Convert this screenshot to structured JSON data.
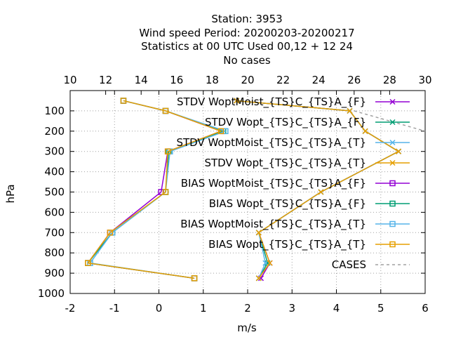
{
  "title_lines": [
    "Station:     3953",
    "Wind speed  Period: 20200203-20200217",
    "Statistics at 00 UTC  Used  00,12  + 12 24",
    "No cases"
  ],
  "chart_data": {
    "type": "line",
    "xlabel": "m/s",
    "ylabel": "hPa",
    "xlim": [
      -2,
      6
    ],
    "ylim": [
      1000,
      0
    ],
    "xticks": [
      "-2",
      "-1",
      "0",
      "1",
      "2",
      "3",
      "4",
      "5",
      "6"
    ],
    "yticks": [
      "100",
      "200",
      "300",
      "400",
      "500",
      "600",
      "700",
      "800",
      "900",
      "1000"
    ],
    "x2lim": [
      10,
      30
    ],
    "x2ticks": [
      "10",
      "12",
      "14",
      "16",
      "18",
      "20",
      "22",
      "24",
      "26",
      "28",
      "30"
    ],
    "grid": true,
    "legend_position": "top-right",
    "series": [
      {
        "name": "STDV WoptMoist_{TS}C_{TS}A_{F}",
        "color": "#9400d3",
        "marker": "x",
        "x": [
          1.75,
          4.3,
          4.65,
          5.4,
          3.65,
          2.25,
          2.5,
          2.3
        ],
        "y": [
          50,
          100,
          200,
          300,
          500,
          700,
          850,
          925
        ]
      },
      {
        "name": "STDV Wopt_{TS}C_{TS}A_{F}",
        "color": "#009e73",
        "marker": "x",
        "x": [
          1.75,
          4.3,
          4.65,
          5.4,
          3.65,
          2.25,
          2.45,
          2.25
        ],
        "y": [
          50,
          100,
          200,
          300,
          500,
          700,
          850,
          925
        ]
      },
      {
        "name": "STDV WoptMoist_{TS}C_{TS}A_{T}",
        "color": "#56b4e9",
        "marker": "x",
        "x": [
          1.75,
          4.3,
          4.65,
          5.4,
          3.65,
          2.25,
          2.4,
          2.25
        ],
        "y": [
          50,
          100,
          200,
          300,
          500,
          700,
          850,
          925
        ]
      },
      {
        "name": "STDV Wopt_{TS}C_{TS}A_{T}",
        "color": "#e69f00",
        "marker": "x",
        "x": [
          1.75,
          4.3,
          4.65,
          5.4,
          3.65,
          2.25,
          2.5,
          2.25
        ],
        "y": [
          50,
          100,
          200,
          300,
          500,
          700,
          850,
          925
        ]
      },
      {
        "name": "BIAS WoptMoist_{TS}C_{TS}A_{F}",
        "color": "#9400d3",
        "marker": "square",
        "x": [
          -0.8,
          0.15,
          1.4,
          0.2,
          0.05,
          -1.1,
          -1.6,
          0.8
        ],
        "y": [
          50,
          100,
          200,
          300,
          500,
          700,
          850,
          925
        ]
      },
      {
        "name": "BIAS Wopt_{TS}C_{TS}A_{F}",
        "color": "#009e73",
        "marker": "square",
        "x": [
          -0.8,
          0.15,
          1.45,
          0.22,
          0.15,
          -1.05,
          -1.6,
          0.8
        ],
        "y": [
          50,
          100,
          200,
          300,
          500,
          700,
          850,
          925
        ]
      },
      {
        "name": "BIAS WoptMoist_{TS}C_{TS}A_{T}",
        "color": "#56b4e9",
        "marker": "square",
        "x": [
          -0.8,
          0.15,
          1.5,
          0.25,
          0.15,
          -1.05,
          -1.55,
          0.8
        ],
        "y": [
          50,
          100,
          200,
          300,
          500,
          700,
          850,
          925
        ]
      },
      {
        "name": "BIAS Wopt_{TS}C_{TS}A_{T}",
        "color": "#e69f00",
        "marker": "square",
        "x": [
          -0.8,
          0.15,
          1.4,
          0.2,
          0.15,
          -1.1,
          -1.6,
          0.8
        ],
        "y": [
          50,
          100,
          200,
          300,
          500,
          700,
          850,
          925
        ]
      }
    ],
    "cases": {
      "name": "CASES",
      "color": "#a0a0a0",
      "dash": true,
      "x2": [
        26,
        30
      ],
      "y": [
        100,
        200
      ]
    }
  }
}
